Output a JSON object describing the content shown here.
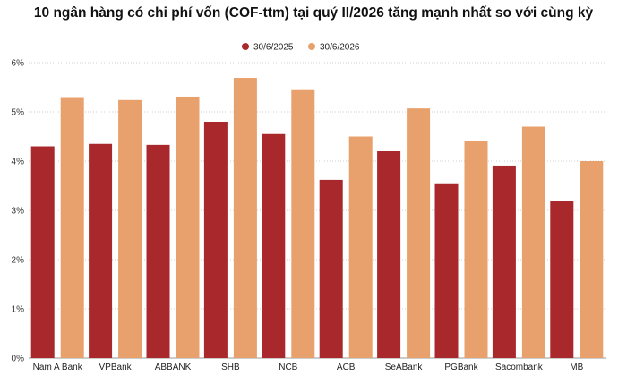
{
  "chart_data": {
    "type": "bar",
    "title": "10 ngân hàng có chi phí vốn (COF-ttm) tại quý II/2026 tăng mạnh nhất so với cùng kỳ",
    "categories": [
      "Nam A Bank",
      "VPBank",
      "ABBANK",
      "SHB",
      "NCB",
      "ACB",
      "SeABank",
      "PGBank",
      "Sacombank",
      "MB"
    ],
    "series": [
      {
        "name": "30/6/2025",
        "color": "#A8282C",
        "values": [
          4.3,
          4.35,
          4.33,
          4.8,
          4.55,
          3.62,
          4.2,
          3.55,
          3.91,
          3.2
        ]
      },
      {
        "name": "30/6/2026",
        "color": "#E8A06C",
        "values": [
          5.3,
          5.24,
          5.31,
          5.69,
          5.46,
          4.5,
          5.07,
          4.4,
          4.7,
          4.0
        ]
      }
    ],
    "y_ticks": [
      "0%",
      "1%",
      "2%",
      "3%",
      "4%",
      "5%",
      "6%"
    ],
    "ylim": [
      0,
      6
    ],
    "grid": true,
    "legend_position": "top-center"
  }
}
